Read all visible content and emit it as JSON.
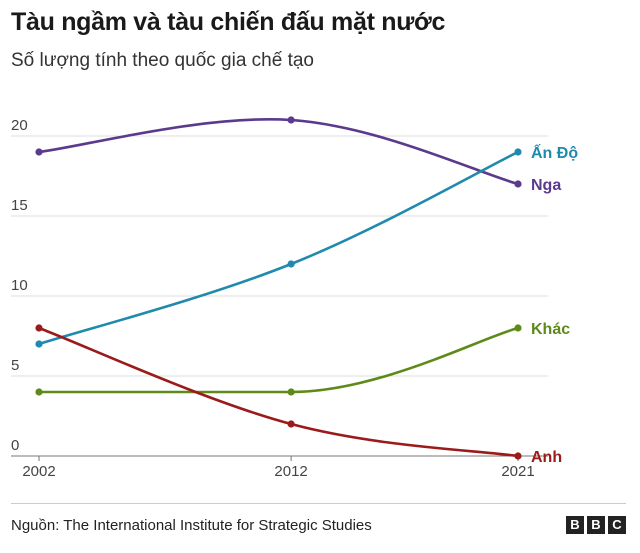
{
  "title": "Tàu ngầm và tàu chiến đấu mặt nước",
  "subtitle": "Số lượng tính theo quốc gia chế tạo",
  "source": "Nguồn: The International Institute for Strategic Studies",
  "brand": {
    "letters": [
      "B",
      "B",
      "C"
    ]
  },
  "chart_data": {
    "type": "line",
    "x": [
      2002,
      2012,
      2021
    ],
    "xticks": [
      "2002",
      "2012",
      "2021"
    ],
    "yticks": [
      "0",
      "5",
      "10",
      "15",
      "20"
    ],
    "ylim": [
      0,
      21
    ],
    "grid": true,
    "series": [
      {
        "name": "Nga",
        "values": [
          19,
          21,
          17
        ],
        "color": "#5b3a8e"
      },
      {
        "name": "Ấn Độ",
        "values": [
          7,
          12,
          19
        ],
        "color": "#1f8aad"
      },
      {
        "name": "Khác",
        "values": [
          4,
          4,
          8
        ],
        "color": "#5e8a1a"
      },
      {
        "name": "Anh",
        "values": [
          8,
          2,
          0
        ],
        "color": "#9b1a1a"
      }
    ]
  }
}
